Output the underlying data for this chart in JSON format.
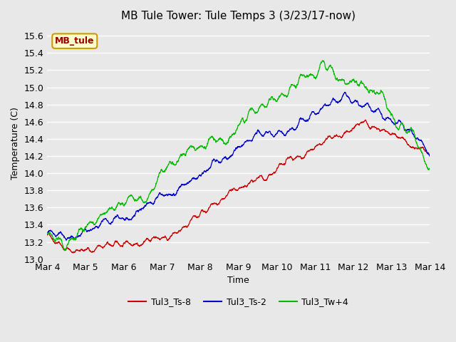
{
  "title": "MB Tule Tower: Tule Temps 3 (3/23/17-now)",
  "xlabel": "Time",
  "ylabel": "Temperature (C)",
  "ylim": [
    13.0,
    15.7
  ],
  "yticks": [
    13.0,
    13.2,
    13.4,
    13.6,
    13.8,
    14.0,
    14.2,
    14.4,
    14.6,
    14.8,
    15.0,
    15.2,
    15.4,
    15.6
  ],
  "background_color": "#e8e8e8",
  "plot_bg_color": "#e8e8e8",
  "grid_color": "#ffffff",
  "line_red": "#cc0000",
  "line_blue": "#0000cc",
  "line_green": "#00bb00",
  "legend_labels": [
    "Tul3_Ts-8",
    "Tul3_Ts-2",
    "Tul3_Tw+4"
  ],
  "tag_label": "MB_tule",
  "tag_bg": "#ffffcc",
  "tag_border": "#cc9900",
  "tag_text_color": "#990000",
  "n_points": 2400,
  "x_start": 4.0,
  "x_end": 14.0,
  "xtick_positions": [
    4,
    5,
    6,
    7,
    8,
    9,
    10,
    11,
    12,
    13,
    14
  ],
  "xtick_labels": [
    "Mar 4",
    "Mar 5",
    "Mar 6",
    "Mar 7",
    "Mar 8",
    "Mar 9",
    "Mar 10",
    "Mar 11",
    "Mar 12",
    "Mar 13",
    "Mar 14"
  ]
}
